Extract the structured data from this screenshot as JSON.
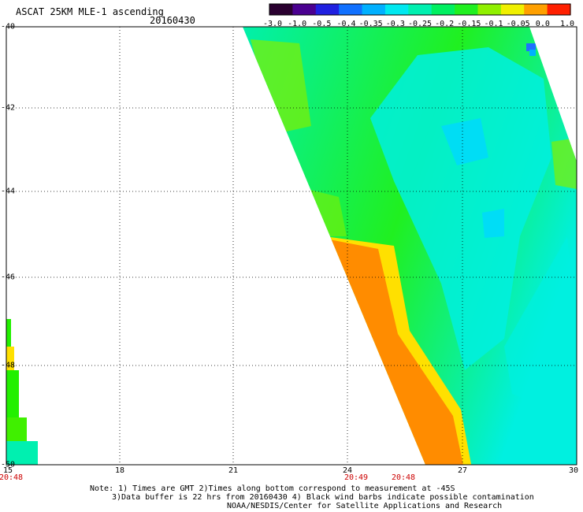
{
  "header": {
    "title": "ASCAT 25KM MLE-1 ascending",
    "date": "20160430"
  },
  "colorbar": {
    "labels": [
      "-3.0",
      "-1.0",
      "-0.5",
      "-0.4",
      "-0.35",
      "-0.3",
      "-0.25",
      "-0.2",
      "-0.15",
      "-0.1",
      "-0.05",
      "0.0",
      "1.0"
    ],
    "colors": [
      "#2a0030",
      "#4a0090",
      "#2020e0",
      "#1070ff",
      "#00b0ff",
      "#00e8f0",
      "#00f0b0",
      "#00f060",
      "#20f020",
      "#90f000",
      "#f0f000",
      "#ffa000",
      "#ff2000"
    ]
  },
  "map": {
    "lat_labels": [
      "-40",
      "-42",
      "-44",
      "-46",
      "-48",
      "-50"
    ],
    "lon_labels": [
      "15",
      "18",
      "21",
      "24",
      "27",
      "30"
    ],
    "time_labels": [
      "20:48",
      "20:49",
      "20:48"
    ],
    "colors": {
      "orange": "#ff8a00",
      "yellow": "#f0f000",
      "green": "#22f000",
      "aqua": "#00f0e0",
      "blue": "#2070ff"
    }
  },
  "footer": {
    "line1": "Note: 1) Times are GMT 2)Times along bottom correspond to measurement at -45S",
    "line2": "3)Data buffer is 22 hrs from 20160430 4) Black wind barbs indicate possible contamination",
    "line3": "NOAA/NESDIS/Center for Satellite Applications and Research"
  }
}
